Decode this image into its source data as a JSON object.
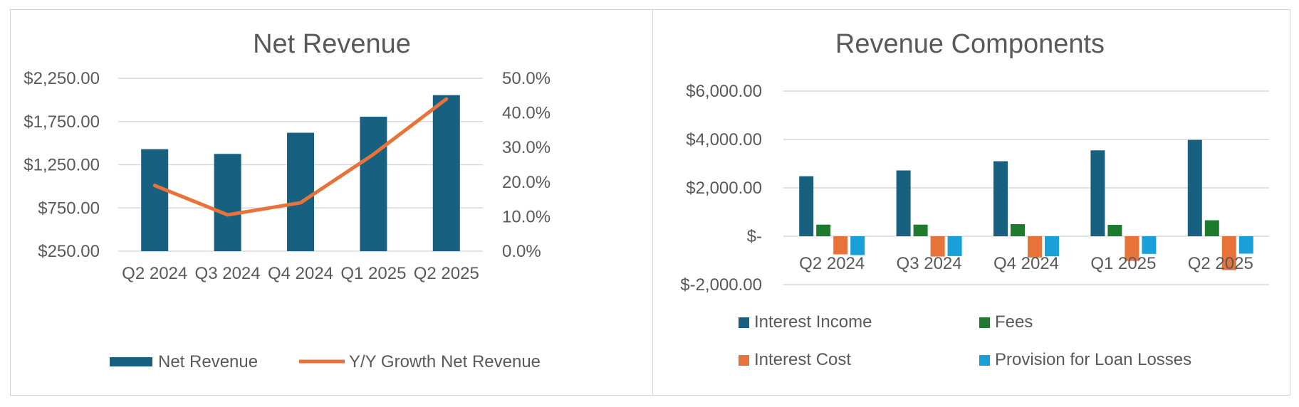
{
  "chart_data": [
    {
      "type": "bar",
      "title": "Net Revenue",
      "categories": [
        "Q2 2024",
        "Q3 2024",
        "Q4 2024",
        "Q1 2025",
        "Q2 2025"
      ],
      "series": [
        {
          "name": "Net Revenue",
          "kind": "bar",
          "axis": "left",
          "color": "#17607f",
          "values": [
            1430,
            1375,
            1620,
            1805,
            2055
          ]
        },
        {
          "name": "Y/Y Growth Net Revenue",
          "kind": "line",
          "axis": "right",
          "color": "#e8733a",
          "values": [
            0.19,
            0.105,
            0.14,
            0.28,
            0.44
          ]
        }
      ],
      "ylim": [
        250,
        2250
      ],
      "y_ticks": [
        250,
        750,
        1250,
        1750,
        2250
      ],
      "y_tick_labels": [
        "$250.00",
        "$750.00",
        "$1,250.00",
        "$1,750.00",
        "$2,250.00"
      ],
      "y2lim": [
        0,
        0.5
      ],
      "y2_ticks": [
        0,
        0.1,
        0.2,
        0.3,
        0.4,
        0.5
      ],
      "y2_tick_labels": [
        "0.0%",
        "10.0%",
        "20.0%",
        "30.0%",
        "40.0%",
        "50.0%"
      ],
      "grid": true,
      "legend_position": "bottom"
    },
    {
      "type": "bar",
      "title": "Revenue Components",
      "categories": [
        "Q2 2024",
        "Q3 2024",
        "Q4 2024",
        "Q1 2025",
        "Q2 2025"
      ],
      "series": [
        {
          "name": "Interest Income",
          "color": "#17607f",
          "values": [
            2480,
            2720,
            3100,
            3550,
            3980
          ]
        },
        {
          "name": "Fees",
          "color": "#1e7b2e",
          "values": [
            480,
            480,
            500,
            470,
            660
          ]
        },
        {
          "name": "Interest Cost",
          "color": "#e8733a",
          "values": [
            -750,
            -840,
            -880,
            -1020,
            -1400
          ]
        },
        {
          "name": "Provision for Loan Losses",
          "color": "#1aa0d8",
          "values": [
            -780,
            -820,
            -830,
            -730,
            -720
          ]
        }
      ],
      "ylim": [
        -2000,
        6000
      ],
      "y_ticks": [
        -2000,
        0,
        2000,
        4000,
        6000
      ],
      "y_tick_labels": [
        "$-2,000.00",
        "$-",
        "$2,000.00",
        "$4,000.00",
        "$6,000.00"
      ],
      "grid": true,
      "legend_position": "bottom"
    }
  ]
}
